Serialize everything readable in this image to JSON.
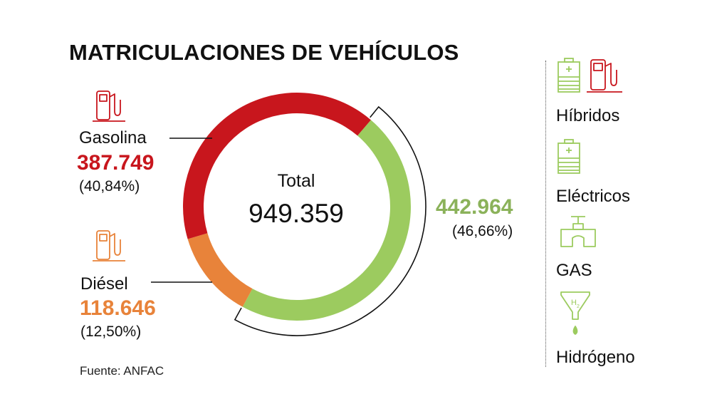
{
  "title": "MATRICULACIONES DE VEHÍCULOS",
  "source": "Fuente: ANFAC",
  "colors": {
    "gasolina": "#c8161d",
    "diesel": "#e8833a",
    "eco": "#9ccb5f",
    "eco_text": "#8bb25a"
  },
  "center": {
    "label": "Total",
    "value": "949.359"
  },
  "labels": {
    "gasolina": {
      "name": "Gasolina",
      "value": "387.749",
      "pct": "(40,84%)"
    },
    "diesel": {
      "name": "Diésel",
      "value": "118.646",
      "pct": "(12,50%)"
    },
    "eco": {
      "value": "442.964",
      "pct": "(46,66%)"
    }
  },
  "legend": [
    {
      "label": "Híbridos",
      "icons": [
        "battery-icon",
        "fuel-pump-icon"
      ]
    },
    {
      "label": "Eléctricos",
      "icons": [
        "battery-icon"
      ]
    },
    {
      "label": "GAS",
      "icons": [
        "gas-tap-icon"
      ]
    },
    {
      "label": "Hidrógeno",
      "icons": [
        "hydrogen-funnel-icon"
      ]
    }
  ],
  "chart_data": {
    "type": "pie",
    "title": "MATRICULACIONES DE VEHÍCULOS",
    "total": 949359,
    "slices": [
      {
        "name": "Gasolina",
        "value": 387749,
        "percent": 40.84,
        "color": "#c8161d"
      },
      {
        "name": "Diésel",
        "value": 118646,
        "percent": 12.5,
        "color": "#e8833a"
      },
      {
        "value": 442964,
        "percent": 46.66,
        "color": "#9ccb5f"
      }
    ]
  }
}
